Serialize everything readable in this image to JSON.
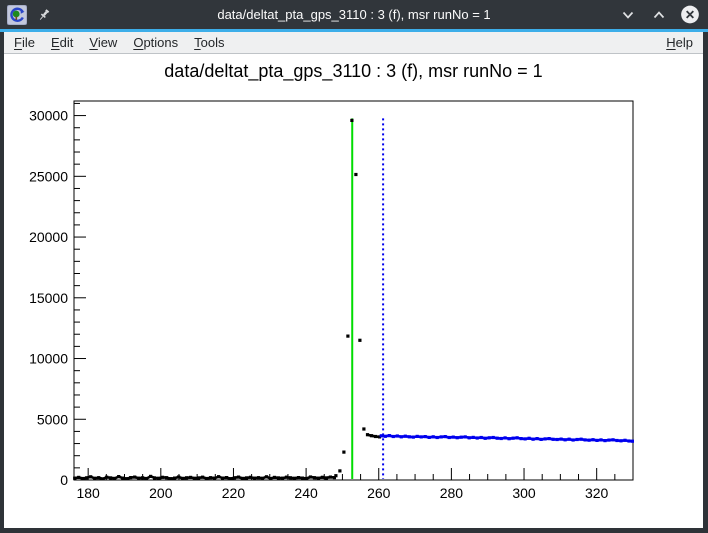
{
  "window": {
    "title": "data/deltat_pta_gps_3110 : 3 (f), msr runNo = 1",
    "controls": {
      "minimize": "chevron-down",
      "maximize": "chevron-up",
      "close": "circle-x"
    }
  },
  "menubar": {
    "items": [
      {
        "label": "File",
        "mnemonic": 0
      },
      {
        "label": "Edit",
        "mnemonic": 0
      },
      {
        "label": "View",
        "mnemonic": 0
      },
      {
        "label": "Options",
        "mnemonic": 0
      },
      {
        "label": "Tools",
        "mnemonic": 0
      }
    ],
    "right_items": [
      {
        "label": "Help",
        "mnemonic": 0
      }
    ]
  },
  "theme": {
    "titlebar_bg": "#31363b",
    "titlebar_fg": "#fcfcfc",
    "accent": "#3daee9",
    "menubar_bg": "#eff0f1",
    "canvas_bg": "#ffffff",
    "frame_color": "#000000"
  },
  "chart_data": {
    "type": "scatter",
    "title": "data/deltat_pta_gps_3110 : 3 (f), msr runNo = 1",
    "xlim": [
      176.1,
      330
    ],
    "ylim": [
      0,
      31200
    ],
    "x_ticks": [
      180,
      200,
      220,
      240,
      260,
      280,
      300,
      320
    ],
    "x_minor_step": 5,
    "y_ticks": [
      0,
      5000,
      10000,
      15000,
      20000,
      25000,
      30000
    ],
    "y_minor_step": 1000,
    "grid": false,
    "legend": null,
    "vertical_markers": [
      {
        "name": "t0-line",
        "x": 252.7,
        "color": "#00dd00",
        "style": "solid"
      },
      {
        "name": "first-good-bin-line",
        "x": 261.2,
        "color": "#0000ee",
        "style": "dotted"
      }
    ],
    "series": [
      {
        "name": "background-data",
        "color": "#000000",
        "draw": "line+markers",
        "t_start": 176.3,
        "t_step": 1.1,
        "values": [
          150,
          210,
          120,
          180,
          260,
          140,
          190,
          90,
          230,
          170,
          130,
          280,
          160,
          110,
          200,
          240,
          150,
          180,
          120,
          300,
          170,
          140,
          220,
          190,
          110,
          160,
          250,
          130,
          180,
          210,
          140,
          170,
          230,
          120,
          190,
          150,
          270,
          160,
          200,
          110,
          180,
          240,
          130,
          170,
          220,
          150,
          190,
          140,
          260,
          120,
          210,
          170,
          150,
          230,
          180,
          140,
          200,
          160,
          120,
          250,
          190,
          150,
          220,
          170,
          240,
          200
        ]
      },
      {
        "name": "prompt-peak-data",
        "color": "#000000",
        "draw": "markers",
        "points": [
          [
            248.2,
            350
          ],
          [
            249.3,
            750
          ],
          [
            250.4,
            2300
          ],
          [
            251.5,
            11850
          ],
          [
            252.6,
            29600
          ],
          [
            253.7,
            25150
          ],
          [
            254.8,
            11500
          ],
          [
            255.9,
            4200
          ]
        ]
      },
      {
        "name": "pre-fit-range-data",
        "color": "#000000",
        "draw": "line+markers",
        "points": [
          [
            256.9,
            3730
          ],
          [
            258.0,
            3650
          ],
          [
            259.1,
            3580
          ],
          [
            260.2,
            3545
          ]
        ]
      },
      {
        "name": "fit-range-data",
        "color": "#0000ee",
        "draw": "line+markers",
        "t_start": 260.7,
        "t_step": 1.1,
        "values": [
          3640,
          3600,
          3655,
          3580,
          3620,
          3555,
          3605,
          3560,
          3530,
          3590,
          3545,
          3575,
          3510,
          3560,
          3495,
          3545,
          3570,
          3500,
          3535,
          3480,
          3520,
          3545,
          3470,
          3510,
          3455,
          3495,
          3430,
          3475,
          3500,
          3440,
          3420,
          3465,
          3400,
          3445,
          3470,
          3410,
          3385,
          3430,
          3360,
          3405,
          3340,
          3385,
          3410,
          3350,
          3330,
          3370,
          3310,
          3355,
          3290,
          3335,
          3360,
          3300,
          3280,
          3320,
          3260,
          3305,
          3240,
          3285,
          3310,
          3250,
          3230,
          3270,
          3210,
          3190
        ]
      }
    ]
  }
}
